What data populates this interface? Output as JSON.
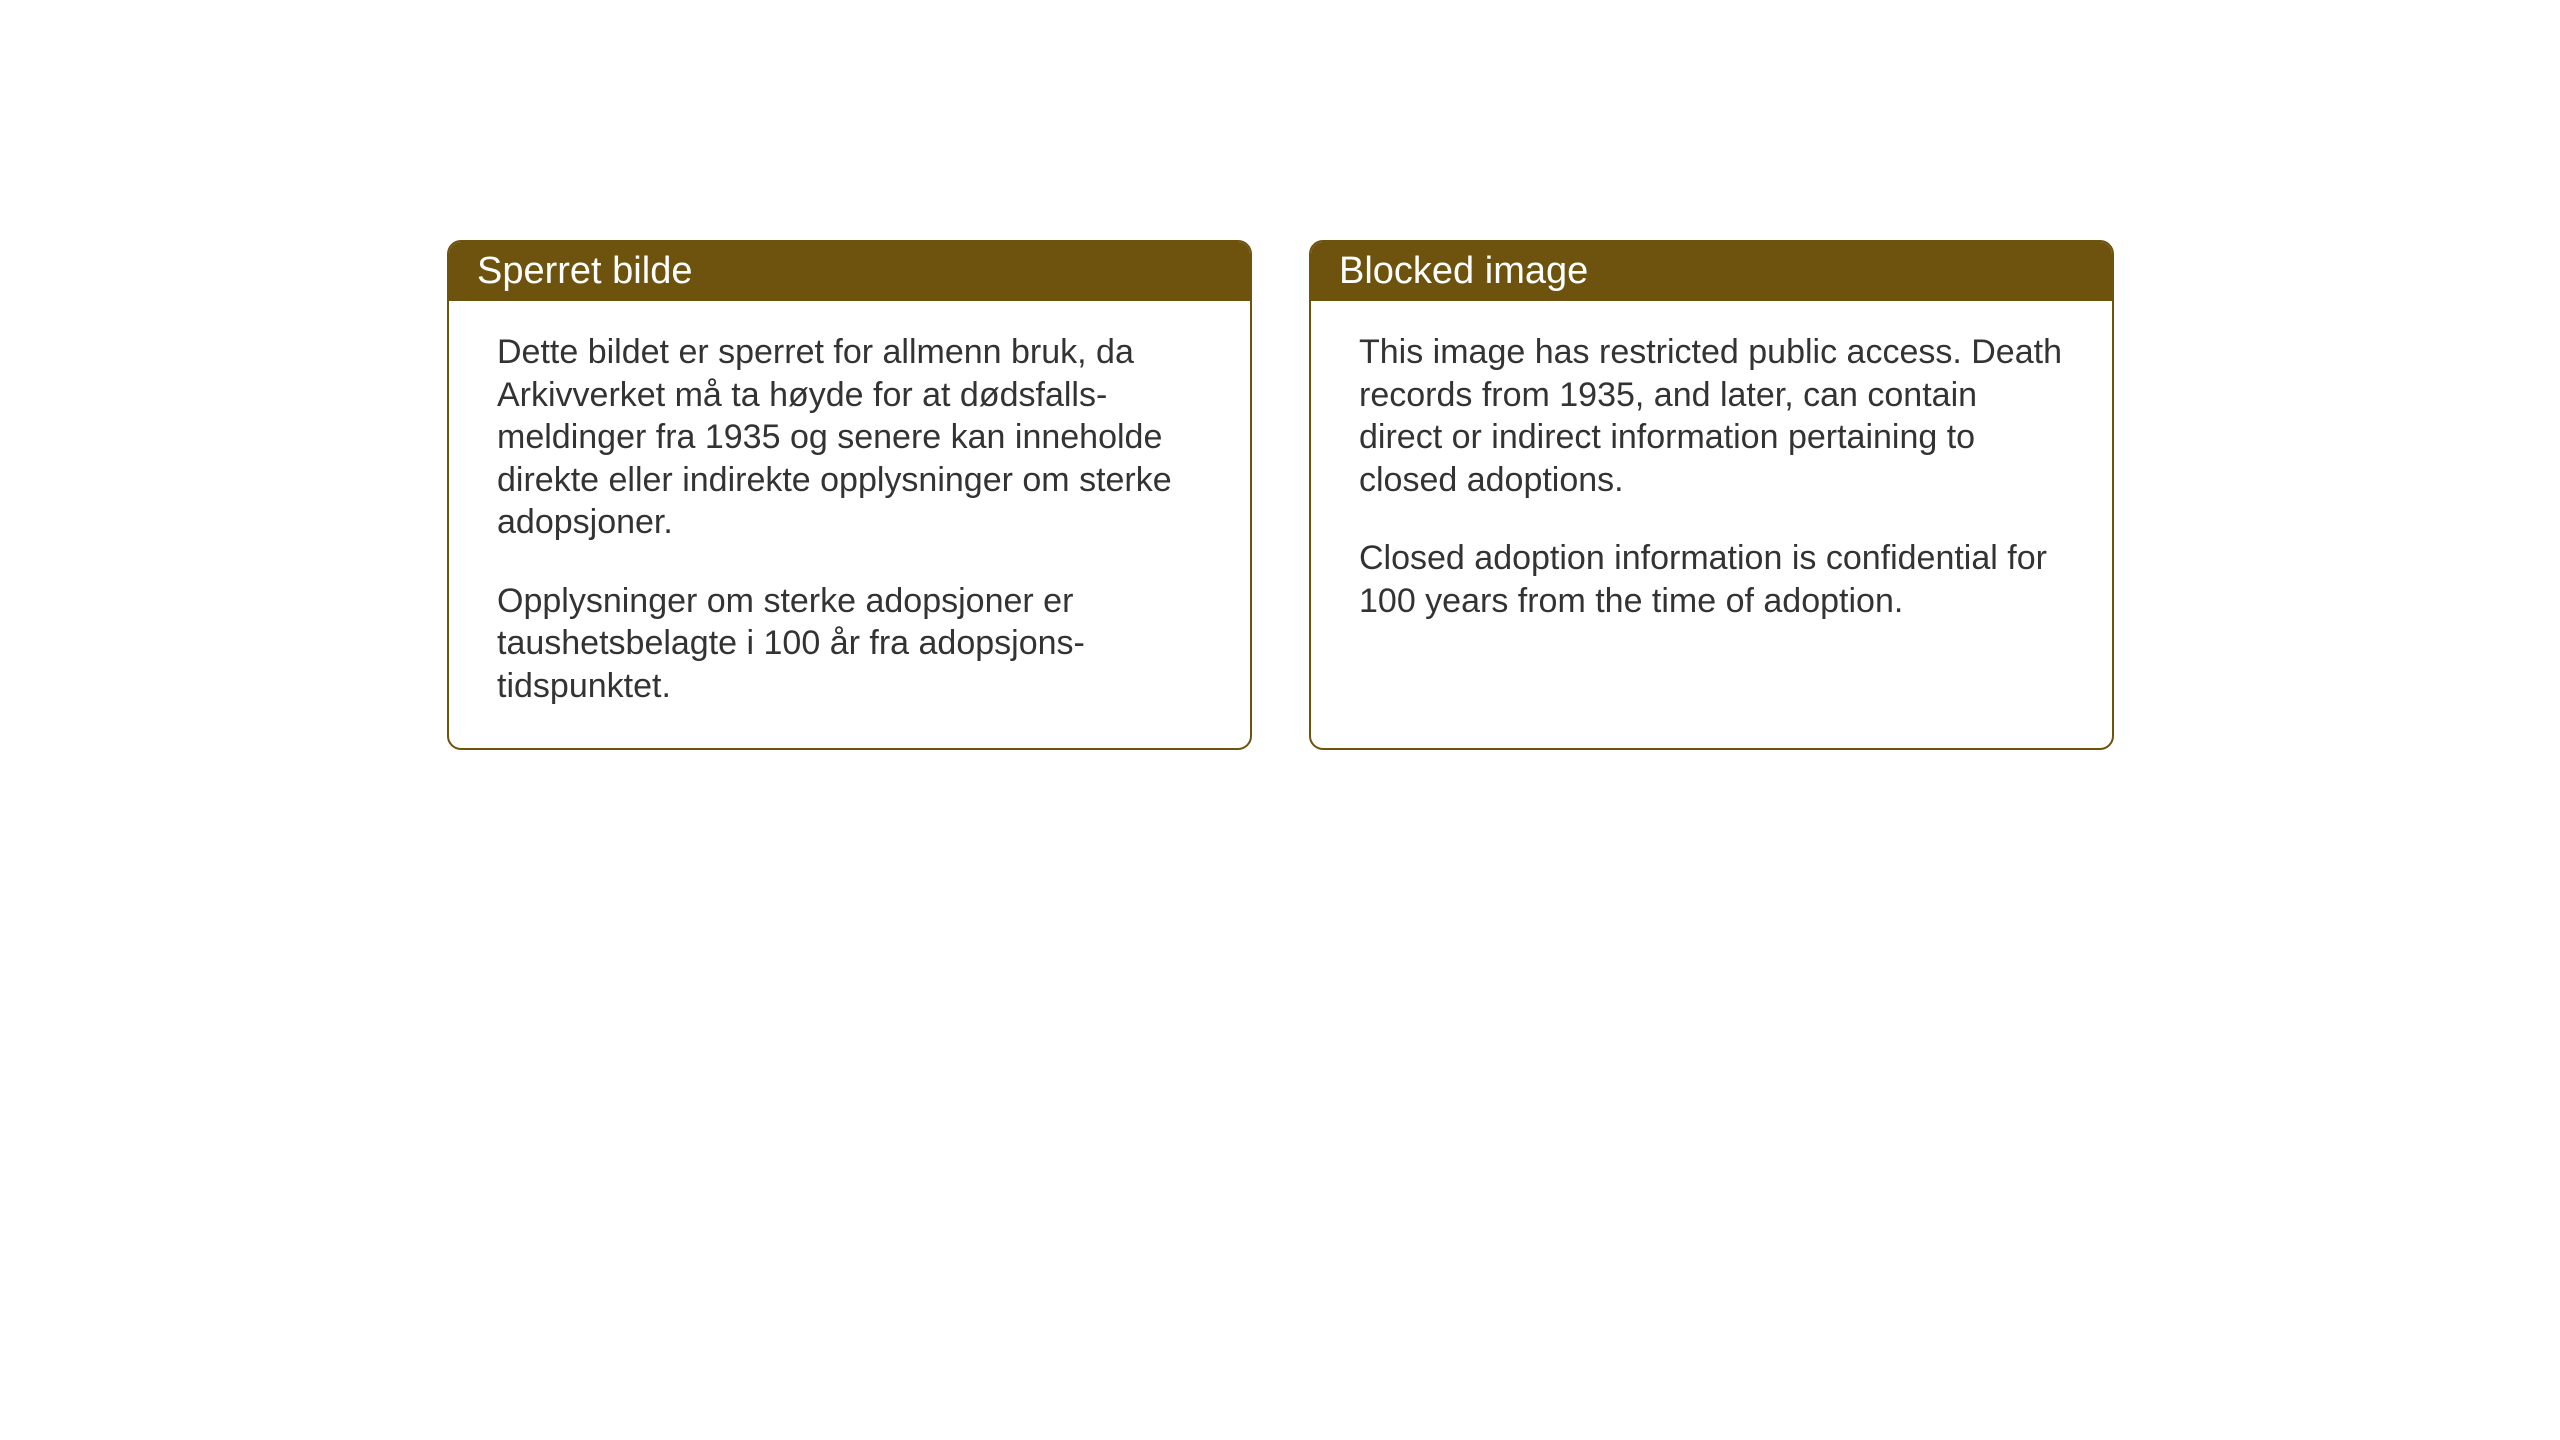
{
  "cards": {
    "norwegian": {
      "title": "Sperret bilde",
      "paragraph1": "Dette bildet er sperret for allmenn bruk, da Arkivverket må ta høyde for at dødsfalls-meldinger fra 1935 og senere kan inneholde direkte eller indirekte opplysninger om sterke adopsjoner.",
      "paragraph2": "Opplysninger om sterke adopsjoner er taushetsbelagte i 100 år fra adopsjons-tidspunktet."
    },
    "english": {
      "title": "Blocked image",
      "paragraph1": "This image has restricted public access. Death records from 1935, and later, can contain direct or indirect information pertaining to closed adoptions.",
      "paragraph2": "Closed adoption information is confidential for 100 years from the time of adoption."
    }
  },
  "styling": {
    "header_background": "#6e530f",
    "header_text_color": "#ffffff",
    "border_color": "#6e530f",
    "body_text_color": "#333333",
    "background_color": "#ffffff",
    "border_radius": "14px",
    "header_fontsize": 38,
    "body_fontsize": 34
  }
}
